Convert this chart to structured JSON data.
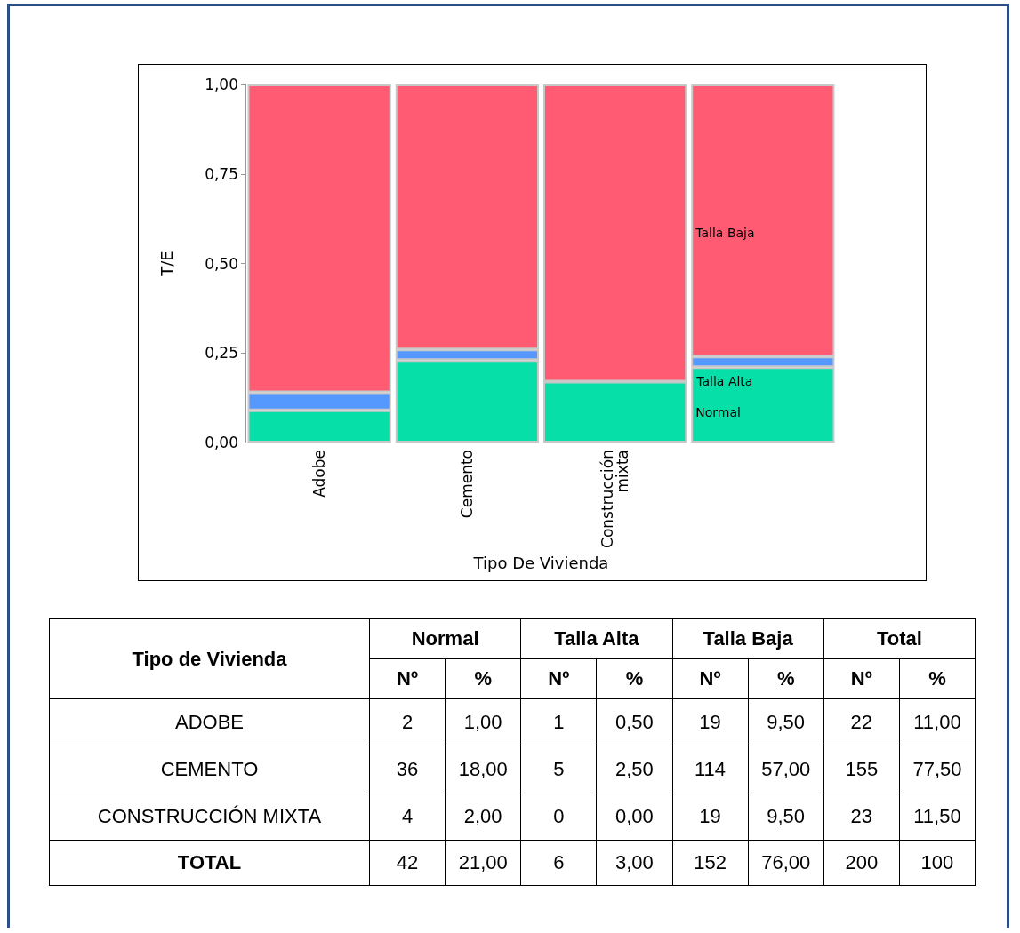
{
  "chart_data": [
    {
      "type": "bar",
      "stacked": true,
      "xlabel": "Tipo De Vivienda",
      "ylabel": "T/E",
      "categories": [
        "Adobe",
        "Cemento",
        "Construcción mixta",
        null
      ],
      "series": [
        {
          "name": "Normal",
          "color": "#06e0a8",
          "values": [
            0.09,
            0.23,
            0.17,
            0.21
          ]
        },
        {
          "name": "Talla Alta",
          "color": "#5599ff",
          "values": [
            0.05,
            0.03,
            0,
            0.03
          ]
        },
        {
          "name": "Talla Baja",
          "color": "#ff5c74",
          "values": [
            0.86,
            0.74,
            0.83,
            0.76
          ]
        }
      ],
      "ylim": [
        0,
        1
      ],
      "yticks": [
        {
          "value": 0,
          "label": "0,00"
        },
        {
          "value": 0.25,
          "label": "0,25"
        },
        {
          "value": 0.5,
          "label": "0,50"
        },
        {
          "value": 0.75,
          "label": "0,75"
        },
        {
          "value": 1,
          "label": "1,00"
        }
      ],
      "grid": false,
      "legend": false
    },
    {
      "type": "other",
      "data_labels": true,
      "xlabel": "Tipo de Vivienda",
      "categories": [
        "ADOBE",
        "CEMENTO",
        "CONSTRUCCIÓN MIXTA",
        "TOTAL"
      ],
      "annotations": [
        "Nº",
        "%"
      ],
      "series": [
        {
          "name": "Normal",
          "values": [
            2,
            36,
            4,
            42
          ]
        },
        {
          "values": [
            1,
            18,
            2,
            21
          ],
          "value_labels": [
            "1,00",
            "18,00",
            "2,00",
            "21,00"
          ]
        },
        {
          "name": "Talla Alta",
          "values": [
            1,
            5,
            0,
            6
          ]
        },
        {
          "values": [
            0.5,
            2.5,
            0,
            3
          ],
          "value_labels": [
            "0,50",
            "2,50",
            "0,00",
            "3,00"
          ]
        },
        {
          "name": "Talla Baja",
          "values": [
            19,
            114,
            19,
            152
          ]
        },
        {
          "values": [
            9.5,
            57,
            9.5,
            76
          ],
          "value_labels": [
            "9,50",
            "57,00",
            "9,50",
            "76,00"
          ]
        },
        {
          "name": "Total",
          "values": [
            22,
            155,
            23,
            200
          ]
        },
        {
          "values": [
            11,
            77.5,
            11.5,
            100
          ],
          "value_labels": [
            "11,00",
            "77,50",
            "11,50",
            "100"
          ]
        }
      ]
    }
  ]
}
